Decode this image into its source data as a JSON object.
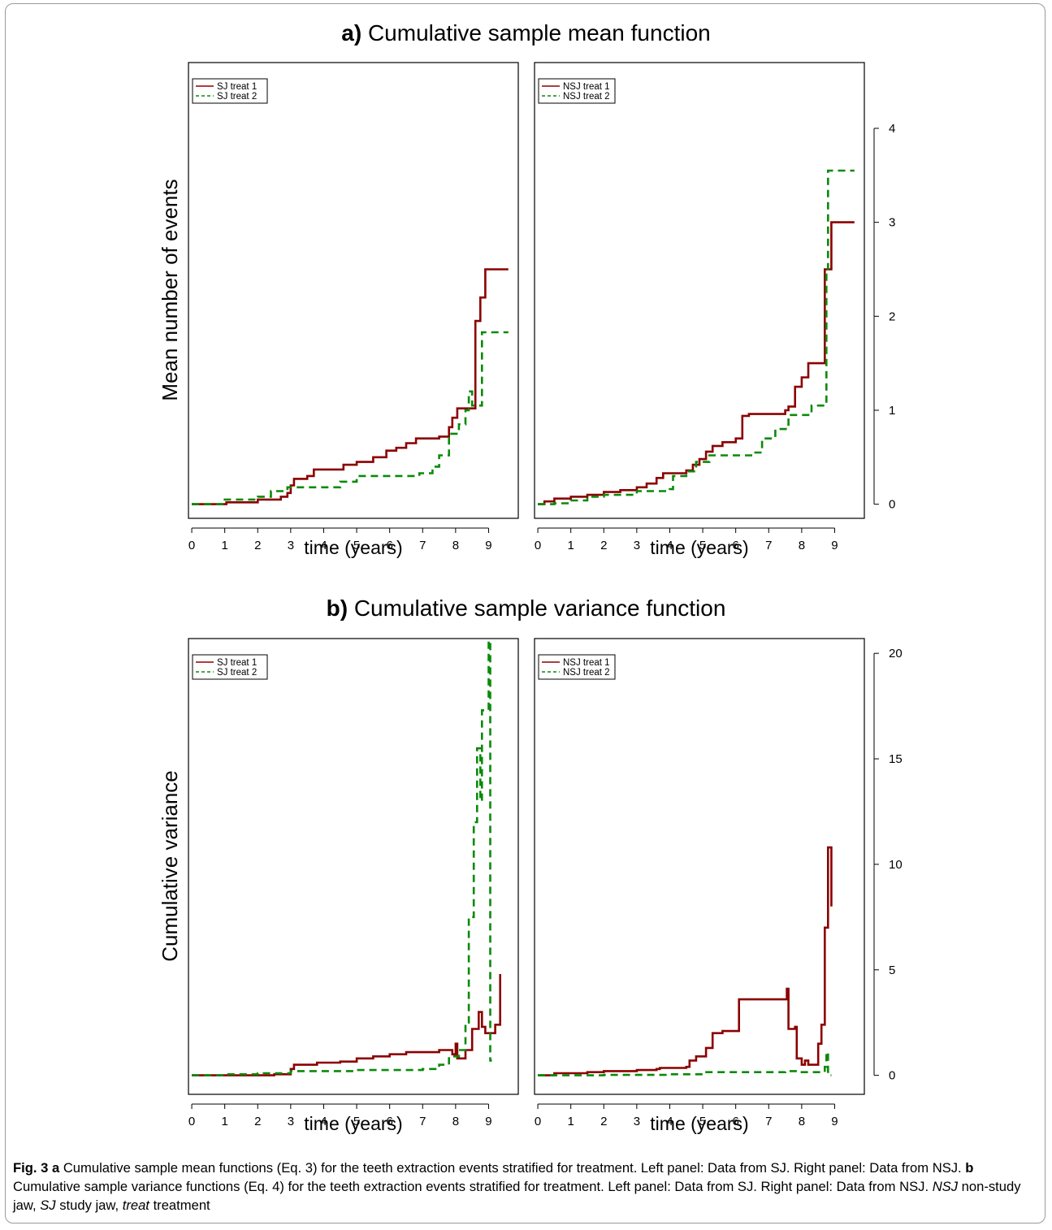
{
  "titles": {
    "a_letter": "a)",
    "a_text": "Cumulative sample mean function",
    "b_letter": "b)",
    "b_text": "Cumulative sample variance function"
  },
  "caption": {
    "fig_label": "Fig. 3",
    "a_letter": "a",
    "a_text": "Cumulative sample mean functions (Eq. 3) for the teeth extraction events stratified for treatment. Left panel: Data from SJ. Right panel: Data from NSJ.",
    "b_letter": "b",
    "b_text": "Cumulative sample variance functions (Eq. 4) for the teeth extraction events stratified for treatment. Left panel: Data from SJ. Right panel: Data from NSJ.",
    "abbr_nsj": "NSJ",
    "abbr_nsj_def": "non-study jaw,",
    "abbr_sj": "SJ",
    "abbr_sj_def": "study jaw,",
    "abbr_treat": "treat",
    "abbr_treat_def": "treatment"
  },
  "colors": {
    "treat1": "#8b0000",
    "treat2": "#0a8a0a"
  },
  "chart_data": [
    {
      "id": "a-left",
      "type": "line",
      "panel": "a",
      "side": "left",
      "xlabel": "time (years)",
      "ylabel": "Mean number of events",
      "xticks": [
        0,
        1,
        2,
        3,
        4,
        5,
        6,
        7,
        8,
        9
      ],
      "xlim": [
        -0.1,
        9.9
      ],
      "yticks": [
        0,
        1,
        2,
        3,
        4
      ],
      "ylim": [
        -0.15,
        4.7
      ],
      "legend": "top-left",
      "step": true,
      "series": [
        {
          "name": "SJ treat 1",
          "style": "solid",
          "points": [
            [
              0,
              0
            ],
            [
              1,
              0
            ],
            [
              1.05,
              0.02
            ],
            [
              1.9,
              0.02
            ],
            [
              2,
              0.05
            ],
            [
              2.7,
              0.08
            ],
            [
              2.9,
              0.12
            ],
            [
              3.0,
              0.2
            ],
            [
              3.1,
              0.27
            ],
            [
              3.5,
              0.3
            ],
            [
              3.7,
              0.37
            ],
            [
              4.5,
              0.37
            ],
            [
              4.6,
              0.42
            ],
            [
              5.0,
              0.45
            ],
            [
              5.5,
              0.5
            ],
            [
              5.9,
              0.57
            ],
            [
              6.2,
              0.6
            ],
            [
              6.5,
              0.65
            ],
            [
              6.8,
              0.7
            ],
            [
              7.5,
              0.72
            ],
            [
              7.8,
              0.82
            ],
            [
              7.9,
              0.92
            ],
            [
              8.05,
              1.02
            ],
            [
              8.5,
              1.02
            ],
            [
              8.6,
              1.95
            ],
            [
              8.75,
              2.2
            ],
            [
              8.9,
              2.5
            ],
            [
              9.6,
              2.5
            ]
          ]
        },
        {
          "name": "SJ treat 2",
          "style": "dashed",
          "points": [
            [
              0,
              0
            ],
            [
              0.9,
              0
            ],
            [
              1.0,
              0.05
            ],
            [
              2.0,
              0.08
            ],
            [
              2.4,
              0.14
            ],
            [
              2.9,
              0.18
            ],
            [
              4.5,
              0.24
            ],
            [
              5.0,
              0.3
            ],
            [
              6.9,
              0.33
            ],
            [
              7.3,
              0.4
            ],
            [
              7.5,
              0.52
            ],
            [
              7.8,
              0.75
            ],
            [
              8.1,
              0.85
            ],
            [
              8.3,
              1.0
            ],
            [
              8.4,
              1.2
            ],
            [
              8.5,
              1.05
            ],
            [
              8.8,
              1.83
            ],
            [
              9.6,
              1.83
            ]
          ]
        }
      ]
    },
    {
      "id": "a-right",
      "type": "line",
      "panel": "a",
      "side": "right",
      "xlabel": "time (years)",
      "xticks": [
        0,
        1,
        2,
        3,
        4,
        5,
        6,
        7,
        8,
        9
      ],
      "xlim": [
        -0.1,
        9.9
      ],
      "yticks": [
        0,
        1,
        2,
        3,
        4
      ],
      "ylim": [
        -0.15,
        4.7
      ],
      "legend": "top-left",
      "step": true,
      "series": [
        {
          "name": "NSJ treat 1",
          "style": "solid",
          "points": [
            [
              0,
              0
            ],
            [
              0.2,
              0.03
            ],
            [
              0.5,
              0.06
            ],
            [
              1.0,
              0.08
            ],
            [
              1.5,
              0.1
            ],
            [
              2.0,
              0.13
            ],
            [
              2.5,
              0.15
            ],
            [
              3.0,
              0.18
            ],
            [
              3.3,
              0.22
            ],
            [
              3.6,
              0.28
            ],
            [
              3.8,
              0.33
            ],
            [
              4.5,
              0.36
            ],
            [
              4.7,
              0.42
            ],
            [
              4.9,
              0.48
            ],
            [
              5.1,
              0.56
            ],
            [
              5.3,
              0.62
            ],
            [
              5.6,
              0.66
            ],
            [
              6.0,
              0.7
            ],
            [
              6.2,
              0.94
            ],
            [
              6.4,
              0.96
            ],
            [
              7.5,
              1.0
            ],
            [
              7.6,
              1.04
            ],
            [
              7.8,
              1.25
            ],
            [
              8.0,
              1.35
            ],
            [
              8.2,
              1.5
            ],
            [
              8.6,
              1.5
            ],
            [
              8.7,
              2.5
            ],
            [
              8.9,
              3.0
            ],
            [
              9.6,
              3.0
            ]
          ]
        },
        {
          "name": "NSJ treat 2",
          "style": "dashed",
          "points": [
            [
              0,
              0
            ],
            [
              0.5,
              0.01
            ],
            [
              1.0,
              0.04
            ],
            [
              1.5,
              0.08
            ],
            [
              2.0,
              0.1
            ],
            [
              3.0,
              0.14
            ],
            [
              4.0,
              0.16
            ],
            [
              4.1,
              0.3
            ],
            [
              4.5,
              0.35
            ],
            [
              4.8,
              0.45
            ],
            [
              5.2,
              0.52
            ],
            [
              6.5,
              0.55
            ],
            [
              6.8,
              0.7
            ],
            [
              7.2,
              0.8
            ],
            [
              7.6,
              0.95
            ],
            [
              8.0,
              0.95
            ],
            [
              8.3,
              1.05
            ],
            [
              8.7,
              1.05
            ],
            [
              8.75,
              2.5
            ],
            [
              8.8,
              3.55
            ],
            [
              9.6,
              3.55
            ]
          ]
        }
      ]
    },
    {
      "id": "b-left",
      "type": "line",
      "panel": "b",
      "side": "left",
      "xlabel": "time (years)",
      "ylabel": "Cumulative variance",
      "xticks": [
        0,
        1,
        2,
        3,
        4,
        5,
        6,
        7,
        8,
        9
      ],
      "xlim": [
        -0.1,
        9.9
      ],
      "yticks": [
        0,
        5,
        10,
        15,
        20
      ],
      "ylim": [
        -0.9,
        20.7
      ],
      "legend": "top-left",
      "step": true,
      "series": [
        {
          "name": "SJ treat 1",
          "style": "solid",
          "points": [
            [
              0,
              0
            ],
            [
              2.5,
              0.05
            ],
            [
              3.0,
              0.3
            ],
            [
              3.1,
              0.5
            ],
            [
              3.8,
              0.6
            ],
            [
              4.5,
              0.65
            ],
            [
              5.0,
              0.8
            ],
            [
              5.5,
              0.9
            ],
            [
              6.0,
              1.0
            ],
            [
              6.5,
              1.1
            ],
            [
              7.5,
              1.2
            ],
            [
              7.9,
              1.0
            ],
            [
              8.0,
              1.5
            ],
            [
              8.05,
              0.8
            ],
            [
              8.3,
              1.2
            ],
            [
              8.5,
              2.2
            ],
            [
              8.7,
              3.0
            ],
            [
              8.8,
              2.3
            ],
            [
              8.9,
              2.0
            ],
            [
              9.2,
              2.4
            ],
            [
              9.35,
              4.8
            ]
          ]
        },
        {
          "name": "SJ treat 2",
          "style": "dashed",
          "points": [
            [
              0,
              0
            ],
            [
              1.0,
              0.05
            ],
            [
              2.0,
              0.1
            ],
            [
              3.0,
              0.2
            ],
            [
              5.0,
              0.25
            ],
            [
              7.0,
              0.3
            ],
            [
              7.5,
              0.5
            ],
            [
              7.8,
              0.9
            ],
            [
              8.1,
              1.2
            ],
            [
              8.3,
              2.5
            ],
            [
              8.4,
              7.5
            ],
            [
              8.55,
              12.0
            ],
            [
              8.65,
              15.5
            ],
            [
              8.75,
              13.0
            ],
            [
              8.8,
              17.3
            ],
            [
              9.0,
              20.6
            ],
            [
              9.05,
              0.7
            ],
            [
              9.1,
              0.7
            ]
          ]
        }
      ]
    },
    {
      "id": "b-right",
      "type": "line",
      "panel": "b",
      "side": "right",
      "xlabel": "time (years)",
      "xticks": [
        0,
        1,
        2,
        3,
        4,
        5,
        6,
        7,
        8,
        9
      ],
      "xlim": [
        -0.1,
        9.9
      ],
      "yticks": [
        0,
        5,
        10,
        15,
        20
      ],
      "ylim": [
        -0.9,
        20.7
      ],
      "legend": "top-left",
      "step": true,
      "series": [
        {
          "name": "NSJ treat 1",
          "style": "solid",
          "points": [
            [
              0,
              0
            ],
            [
              0.5,
              0.1
            ],
            [
              1.5,
              0.15
            ],
            [
              2.0,
              0.2
            ],
            [
              3.0,
              0.25
            ],
            [
              3.6,
              0.3
            ],
            [
              3.7,
              0.35
            ],
            [
              4.5,
              0.4
            ],
            [
              4.6,
              0.7
            ],
            [
              4.8,
              0.9
            ],
            [
              5.1,
              1.3
            ],
            [
              5.3,
              2.0
            ],
            [
              5.6,
              2.1
            ],
            [
              6.0,
              2.1
            ],
            [
              6.1,
              3.6
            ],
            [
              7.5,
              3.6
            ],
            [
              7.55,
              4.1
            ],
            [
              7.6,
              2.2
            ],
            [
              7.8,
              2.3
            ],
            [
              7.85,
              0.8
            ],
            [
              8.0,
              0.5
            ],
            [
              8.1,
              0.7
            ],
            [
              8.2,
              0.5
            ],
            [
              8.5,
              1.5
            ],
            [
              8.6,
              2.4
            ],
            [
              8.7,
              7.0
            ],
            [
              8.8,
              10.8
            ],
            [
              8.85,
              10.8
            ],
            [
              8.9,
              8.0
            ]
          ]
        },
        {
          "name": "NSJ treat 2",
          "style": "dashed",
          "points": [
            [
              0,
              0
            ],
            [
              2.0,
              0.02
            ],
            [
              4.0,
              0.05
            ],
            [
              5.0,
              0.15
            ],
            [
              7.0,
              0.15
            ],
            [
              7.5,
              0.2
            ],
            [
              8.0,
              0.15
            ],
            [
              8.5,
              0.15
            ],
            [
              8.7,
              0.4
            ],
            [
              8.75,
              1.1
            ],
            [
              8.8,
              0.0
            ],
            [
              8.9,
              0.0
            ]
          ]
        }
      ]
    }
  ]
}
